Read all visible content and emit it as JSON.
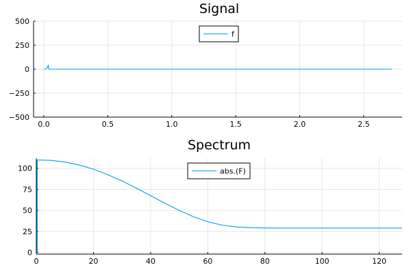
{
  "chart_data": [
    {
      "type": "line",
      "title": "Signal",
      "xlabel": "",
      "ylabel": "",
      "xlim": [
        -0.08,
        2.8
      ],
      "ylim": [
        -500,
        500
      ],
      "xticks": [
        0.0,
        0.5,
        1.0,
        1.5,
        2.0,
        2.5
      ],
      "xtick_labels": [
        "0.0",
        "0.5",
        "1.0",
        "1.5",
        "2.0",
        "2.5"
      ],
      "yticks": [
        -500,
        -250,
        0,
        250,
        500
      ],
      "ytick_labels": [
        "−500",
        "−250",
        "0",
        "250",
        "500"
      ],
      "grid": true,
      "legend_position": "top-center",
      "series": [
        {
          "name": "f",
          "color": "#009af9",
          "x": [
            0.0,
            0.01,
            0.02,
            0.03,
            0.035,
            0.04,
            0.05,
            0.1,
            0.5,
            1.0,
            1.5,
            2.0,
            2.5,
            2.72
          ],
          "y": [
            0,
            0,
            5,
            25,
            40,
            0,
            0,
            0,
            0,
            0,
            0,
            0,
            0,
            0
          ]
        }
      ]
    },
    {
      "type": "line",
      "title": "Spectrum",
      "xlabel": "",
      "ylabel": "",
      "xlim": [
        0,
        128
      ],
      "ylim": [
        -2,
        112
      ],
      "xticks": [
        0,
        20,
        40,
        60,
        80,
        100,
        120
      ],
      "xtick_labels": [
        "0",
        "20",
        "40",
        "60",
        "80",
        "100",
        "120"
      ],
      "yticks": [
        0,
        25,
        50,
        75,
        100
      ],
      "ytick_labels": [
        "0",
        "25",
        "50",
        "75",
        "100"
      ],
      "grid": true,
      "legend_position": "top-center",
      "series": [
        {
          "name": "abs.(F)",
          "color": "#009af9",
          "x": [
            0,
            5,
            10,
            15,
            20,
            25,
            30,
            35,
            40,
            45,
            50,
            55,
            60,
            65,
            70,
            75,
            80,
            85,
            90,
            100,
            110,
            120,
            128
          ],
          "y": [
            110,
            109.5,
            107.5,
            104,
            99,
            92.5,
            85,
            76.5,
            67.5,
            58.5,
            50,
            42.5,
            36.5,
            32.5,
            30.3,
            29.4,
            29.1,
            29,
            29,
            29,
            29,
            29,
            29
          ]
        }
      ],
      "spike_x": 0.3,
      "spike_ymin": 0,
      "spike_ymax": 110
    }
  ]
}
